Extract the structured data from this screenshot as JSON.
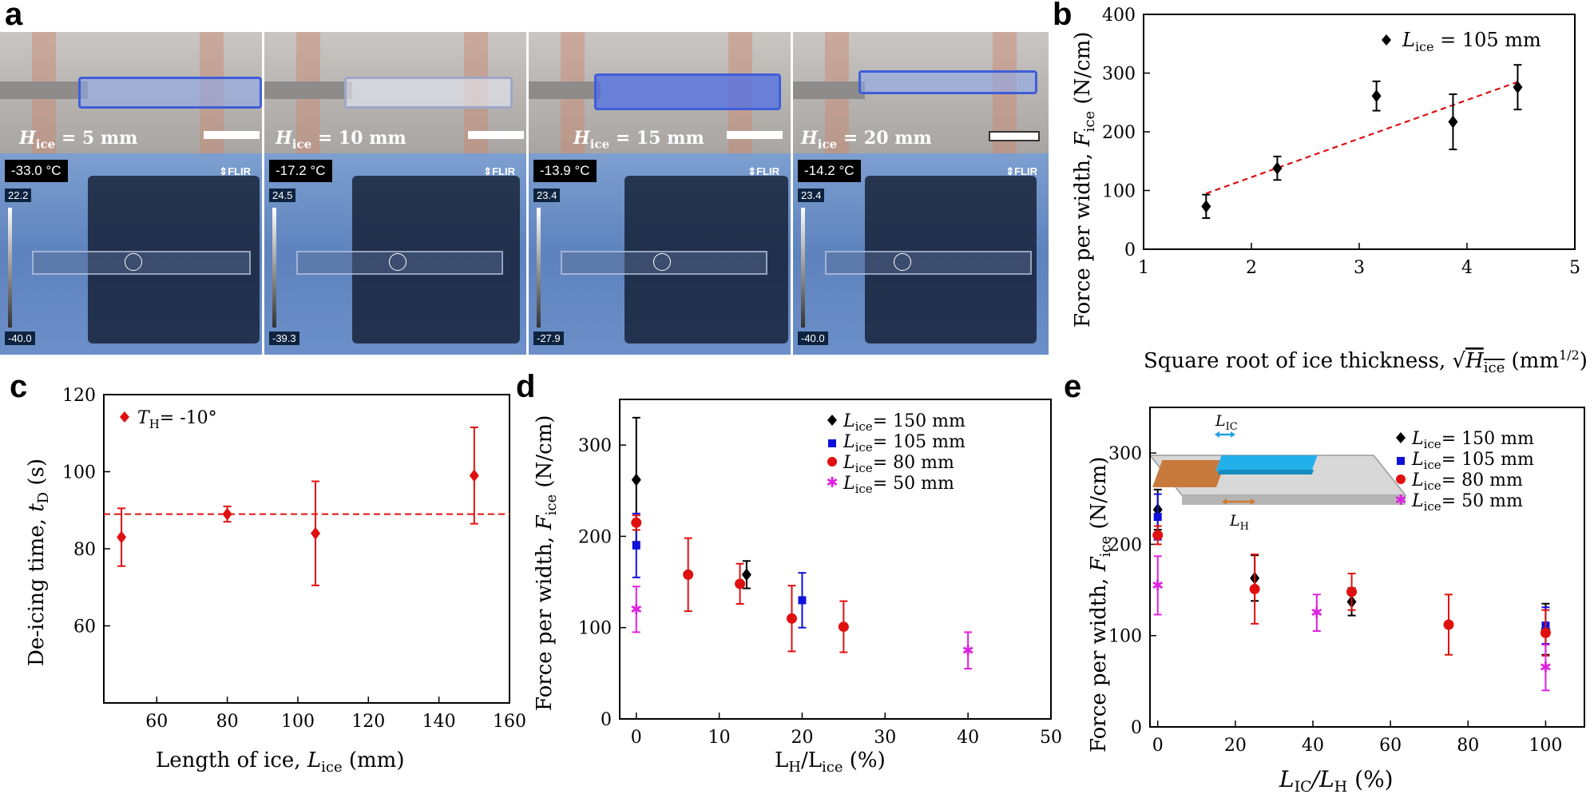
{
  "panels": {
    "a": "a",
    "b": "b",
    "c": "c",
    "d": "d",
    "e": "e"
  },
  "photos": [
    {
      "h_label": "= 5 mm",
      "temp": "-33.0 °C",
      "scale_max": "22.2",
      "scale_min": "-40.0"
    },
    {
      "h_label": "= 10 mm",
      "temp": "-17.2 °C",
      "scale_max": "24.5",
      "scale_min": "-39.3"
    },
    {
      "h_label": "= 15 mm",
      "temp": "-13.9 °C",
      "scale_max": "23.4",
      "scale_min": "-27.9"
    },
    {
      "h_label": "= 20 mm",
      "temp": "-14.2 °C",
      "scale_max": "23.4",
      "scale_min": "-40.0"
    }
  ],
  "photo_meta": {
    "flir": "FLIR",
    "h_symbol": "H",
    "h_sub": "ice"
  },
  "colors": {
    "black": "#000000",
    "blue": "#1010dd",
    "red": "#e01010",
    "magenta": "#e020e0"
  },
  "chart_data": [
    {
      "id": "b",
      "type": "scatter",
      "xlabel": "Square root of ice thickness,",
      "xlabel_unit": "(mm",
      "xlabel_exp": "1/2",
      "xlabel_close": ")",
      "ylabel": "Force per width,",
      "ylabel_unit": "(N/cm)",
      "xlim": [
        1,
        5
      ],
      "ylim": [
        0,
        400
      ],
      "xticks": [
        1,
        2,
        3,
        4,
        5
      ],
      "yticks": [
        0,
        100,
        200,
        300,
        400
      ],
      "legend": "= 105 mm",
      "series": [
        {
          "name": "L_ice = 105 mm",
          "color": "black",
          "marker": "diamond",
          "points": [
            {
              "x": 1.58,
              "y": 73,
              "err": 20
            },
            {
              "x": 2.24,
              "y": 138,
              "err": 20
            },
            {
              "x": 3.16,
              "y": 261,
              "err": 25
            },
            {
              "x": 3.87,
              "y": 217,
              "err": 47
            },
            {
              "x": 4.47,
              "y": 276,
              "err": 38
            }
          ]
        }
      ],
      "fit": {
        "x": [
          1.58,
          4.47
        ],
        "y": [
          95,
          285
        ],
        "color": "red",
        "style": "dashed"
      }
    },
    {
      "id": "c",
      "type": "scatter",
      "xlabel": "Length of ice,",
      "xlabel_unit": "(mm)",
      "ylabel": "De-icing time,",
      "ylabel_unit": "(s)",
      "xlim": [
        45,
        160
      ],
      "ylim": [
        40,
        120
      ],
      "xticks": [
        60,
        80,
        100,
        120,
        140,
        160
      ],
      "yticks": [
        60,
        80,
        100,
        120
      ],
      "legend": "= -10°",
      "series": [
        {
          "name": "T_H = -10°",
          "color": "red",
          "marker": "diamond",
          "points": [
            {
              "x": 50,
              "y": 83,
              "err": 7.5
            },
            {
              "x": 80,
              "y": 89,
              "err": 2
            },
            {
              "x": 105,
              "y": 84,
              "err": 13.5
            },
            {
              "x": 150,
              "y": 99,
              "err": 12.5
            }
          ]
        }
      ],
      "hline": {
        "y": 89,
        "color": "red",
        "style": "dashed"
      }
    },
    {
      "id": "d",
      "type": "scatter",
      "xlabel_text": "(%)",
      "ylabel": "Force per width,",
      "ylabel_unit": "(N/cm)",
      "xlim": [
        -2,
        50
      ],
      "ylim": [
        0,
        350
      ],
      "xticks": [
        0,
        10,
        20,
        30,
        40,
        50
      ],
      "yticks": [
        0,
        100,
        200,
        300
      ],
      "series": [
        {
          "name": "= 150 mm",
          "color": "black",
          "marker": "diamond",
          "points": [
            {
              "x": 0,
              "y": 262,
              "err": 68
            },
            {
              "x": 13.3,
              "y": 158,
              "err": 15
            }
          ]
        },
        {
          "name": "= 105 mm",
          "color": "blue",
          "marker": "square",
          "points": [
            {
              "x": 0,
              "y": 190,
              "err": 35
            },
            {
              "x": 20,
              "y": 130,
              "err": 30
            }
          ]
        },
        {
          "name": "= 80 mm",
          "color": "red",
          "marker": "circle",
          "points": [
            {
              "x": 0,
              "y": 215,
              "err": 8
            },
            {
              "x": 6.25,
              "y": 158,
              "err": 40
            },
            {
              "x": 12.5,
              "y": 148,
              "err": 22
            },
            {
              "x": 18.75,
              "y": 110,
              "err": 36
            },
            {
              "x": 25,
              "y": 101,
              "err": 28
            }
          ]
        },
        {
          "name": "= 50 mm",
          "color": "magenta",
          "marker": "star",
          "points": [
            {
              "x": 0,
              "y": 120,
              "err": 25
            },
            {
              "x": 40,
              "y": 75,
              "err": 20
            }
          ]
        }
      ]
    },
    {
      "id": "e",
      "type": "scatter",
      "xlabel_text": "(%)",
      "ylabel": "Force per width,",
      "ylabel_unit": "(N/cm)",
      "xlim": [
        -2,
        110
      ],
      "ylim": [
        0,
        350
      ],
      "xticks": [
        0,
        20,
        40,
        60,
        80,
        100
      ],
      "yticks": [
        0,
        100,
        200,
        300
      ],
      "inset": {
        "l_ic": "L",
        "l_ic_sub": "IC",
        "l_h": "L",
        "l_h_sub": "H"
      },
      "series": [
        {
          "name": "= 150 mm",
          "color": "black",
          "marker": "diamond",
          "points": [
            {
              "x": 0,
              "y": 238,
              "err": 22
            },
            {
              "x": 25,
              "y": 163,
              "err": 25
            },
            {
              "x": 50,
              "y": 137,
              "err": 15
            },
            {
              "x": 100,
              "y": 107,
              "err": 28
            }
          ]
        },
        {
          "name": "= 105 mm",
          "color": "blue",
          "marker": "square",
          "points": [
            {
              "x": 0,
              "y": 230,
              "err": 25
            },
            {
              "x": 100,
              "y": 111,
              "err": 20
            }
          ]
        },
        {
          "name": "= 80 mm",
          "color": "red",
          "marker": "circle",
          "points": [
            {
              "x": 0,
              "y": 210,
              "err": 10
            },
            {
              "x": 25,
              "y": 151,
              "err": 38
            },
            {
              "x": 50,
              "y": 148,
              "err": 20
            },
            {
              "x": 75,
              "y": 112,
              "err": 33
            },
            {
              "x": 100,
              "y": 103,
              "err": 25
            }
          ]
        },
        {
          "name": "= 50 mm",
          "color": "magenta",
          "marker": "star",
          "points": [
            {
              "x": 0,
              "y": 155,
              "err": 32
            },
            {
              "x": 41,
              "y": 125,
              "err": 20
            },
            {
              "x": 100,
              "y": 65,
              "err": 25
            }
          ]
        }
      ]
    }
  ]
}
